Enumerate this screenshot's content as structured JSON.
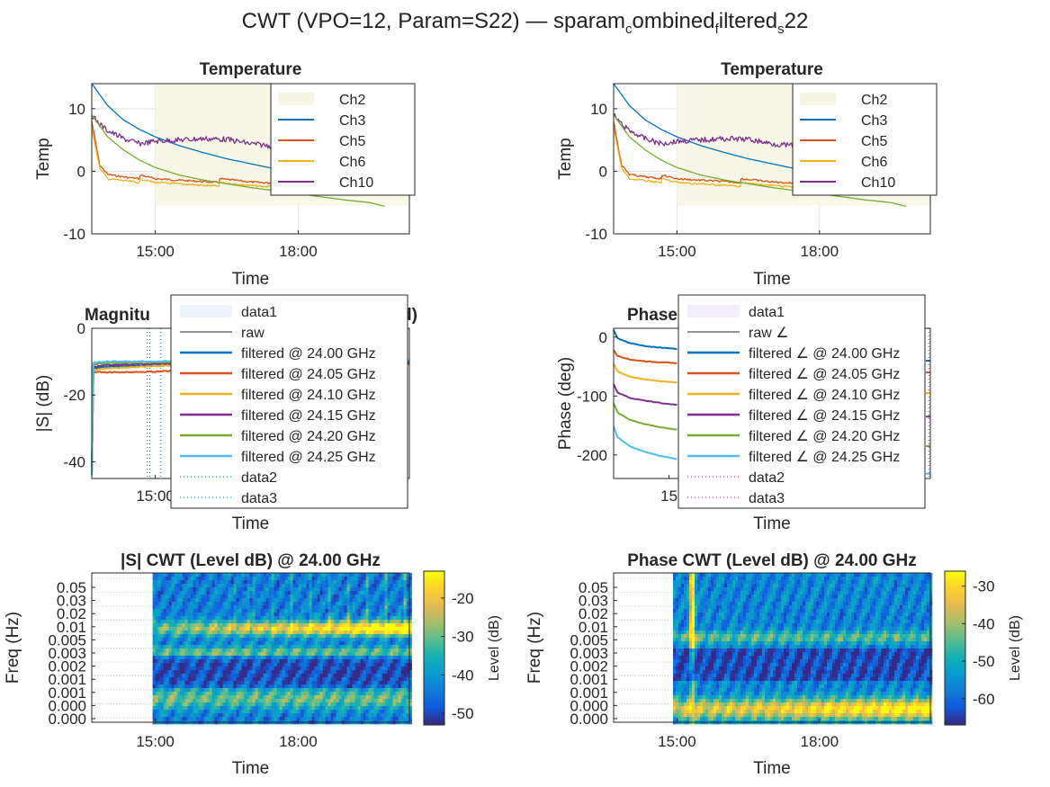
{
  "suptitle": {
    "prefix": "CWT (VPO=12, Param=S22) — sparam",
    "s1": "c",
    "mid1": "ombined",
    "s2": "f",
    "mid2": "iltered",
    "s3": "s",
    "suffix": "22"
  },
  "colors": {
    "ch2": "#f7f6e4",
    "ch3": "#0072bd",
    "ch5": "#d95319",
    "ch6": "#edb120",
    "ch10": "#7e2f8e",
    "f2400": "#0072bd",
    "f2405": "#d95319",
    "f2410": "#edb120",
    "f2415": "#7e2f8e",
    "f2420": "#77ac30",
    "f2425": "#4dbeee"
  },
  "chart_data": [
    {
      "id": "temp_left",
      "type": "line",
      "title": "Temperature",
      "xlabel": "Time",
      "ylabel": "Temp",
      "x_ticks": [
        "15:00",
        "18:00"
      ],
      "xlim": [
        "13:40",
        "20:20"
      ],
      "ylim": [
        -10,
        14
      ],
      "y_ticks": [
        10,
        0,
        -10
      ],
      "grid": true,
      "legend": "top-right",
      "legend_entries": [
        "Ch2",
        "Ch3",
        "Ch5",
        "Ch6",
        "Ch10"
      ],
      "series": [
        {
          "name": "Ch2",
          "kind": "band",
          "x": [
            "15:00",
            "20:20"
          ],
          "y": [
            -5.5,
            14
          ]
        },
        {
          "name": "Ch3",
          "x": [
            "13:40",
            "14:00",
            "14:20",
            "14:40",
            "15:00",
            "15:30",
            "16:00",
            "16:30",
            "17:00",
            "17:30",
            "18:00",
            "18:30",
            "19:00",
            "19:30",
            "19:50",
            "19:55",
            "20:20"
          ],
          "y": [
            14,
            10.5,
            8.2,
            6.7,
            5.5,
            4.1,
            3.0,
            2.0,
            1.2,
            0.4,
            -0.3,
            -0.9,
            -1.5,
            -2.0,
            -2.6,
            -0.8,
            -0.8
          ]
        },
        {
          "name": "Ch5",
          "x": [
            "13:40",
            "13:50",
            "14:00",
            "14:20",
            "14:40",
            "14:41",
            "15:00",
            "15:40",
            "16:20",
            "16:21",
            "17:00",
            "17:40",
            "18:20",
            "19:00",
            "19:40",
            "20:20"
          ],
          "y": [
            8,
            1.0,
            -0.5,
            -0.9,
            -1.2,
            -0.6,
            -1.2,
            -1.5,
            -1.8,
            -1.2,
            -1.7,
            -2.0,
            -2.3,
            -2.6,
            -2.8,
            -3.0
          ]
        },
        {
          "name": "Ch6",
          "x": [
            "13:40",
            "13:50",
            "14:00",
            "14:20",
            "14:40",
            "14:41",
            "15:00",
            "15:40",
            "16:20",
            "16:21",
            "17:00",
            "17:40",
            "18:20",
            "19:00",
            "19:40",
            "20:20"
          ],
          "y": [
            7,
            0.5,
            -1.2,
            -1.5,
            -1.8,
            -1.2,
            -1.8,
            -2.1,
            -2.4,
            -1.8,
            -2.3,
            -2.6,
            -2.9,
            -3.2,
            -3.4,
            -3.6
          ]
        },
        {
          "name": "Ch10",
          "x": [
            "13:40",
            "13:50",
            "14:00",
            "14:20",
            "14:40",
            "15:00",
            "15:30",
            "16:00",
            "16:30",
            "17:00",
            "17:30",
            "18:00",
            "18:30",
            "19:00",
            "19:30",
            "20:00",
            "20:20"
          ],
          "y": [
            9,
            7.5,
            6.5,
            5.2,
            4.4,
            4.8,
            5.0,
            5.2,
            5.1,
            4.4,
            4.0,
            3.8,
            3.5,
            3.3,
            3.2,
            3.1,
            3.0
          ]
        },
        {
          "name": "",
          "x": [
            "13:40",
            "14:00",
            "14:20",
            "14:40",
            "15:00",
            "15:30",
            "16:00",
            "16:30",
            "17:00",
            "17:30",
            "18:00",
            "18:30",
            "19:00",
            "19:30",
            "19:49"
          ],
          "y": [
            9,
            5.5,
            3.4,
            1.8,
            0.6,
            -0.6,
            -1.4,
            -2.0,
            -2.6,
            -3.1,
            -3.6,
            -4.1,
            -4.6,
            -5.0,
            -5.6
          ]
        }
      ]
    },
    {
      "id": "temp_right",
      "type": "line",
      "title": "Temperature",
      "xlabel": "Time",
      "ylabel": "Temp",
      "x_ticks": [
        "15:00",
        "18:00"
      ],
      "xlim": [
        "13:40",
        "20:20"
      ],
      "ylim": [
        -10,
        14
      ],
      "y_ticks": [
        10,
        0,
        -10
      ],
      "grid": true,
      "legend": "top-right",
      "legend_entries": [
        "Ch2",
        "Ch3",
        "Ch5",
        "Ch6",
        "Ch10"
      ]
    },
    {
      "id": "mag",
      "type": "line",
      "title_visible": "Magnitu",
      "title_visible_tail": "d)",
      "xlabel": "Time",
      "ylabel": "|S| (dB)",
      "x_ticks": [
        "15:00"
      ],
      "xlim": [
        "13:40",
        "20:20"
      ],
      "ylim": [
        -45,
        0
      ],
      "y_ticks": [
        0,
        -20,
        -40
      ],
      "legend": "top-right",
      "legend_entries": [
        "data1",
        "raw",
        "filtered @ 24.00 GHz",
        "filtered @ 24.05 GHz",
        "filtered @ 24.10 GHz",
        "filtered @ 24.15 GHz",
        "filtered @ 24.20 GHz",
        "filtered @ 24.25 GHz",
        "data2",
        "data3"
      ],
      "series": [
        {
          "name": "filtered @ 24.00 GHz",
          "x": [
            "13:40",
            "13:42",
            "14:00",
            "15:00",
            "16:00",
            "17:00",
            "18:00",
            "19:00",
            "20:20"
          ],
          "y": [
            -44,
            -12,
            -11.5,
            -11.2,
            -11.0,
            -10.8,
            -10.6,
            -10.5,
            -10.4
          ]
        },
        {
          "name": "filtered @ 24.05 GHz",
          "x": [
            "13:40",
            "13:42",
            "14:00",
            "15:00",
            "16:00",
            "17:00",
            "18:00",
            "19:00",
            "20:20"
          ],
          "y": [
            -44,
            -13,
            -13.2,
            -13.0,
            -12.2,
            -11.6,
            -11.0,
            -10.8,
            -10.6
          ]
        },
        {
          "name": "filtered @ 24.10 GHz",
          "x": [
            "13:40",
            "13:42",
            "14:00",
            "15:00",
            "16:00",
            "17:00",
            "18:00",
            "19:00",
            "20:20"
          ],
          "y": [
            -44,
            -12.5,
            -12.0,
            -11.3,
            -10.8,
            -10.4,
            -10.1,
            -10.0,
            -9.8
          ]
        },
        {
          "name": "filtered @ 24.15 GHz",
          "x": [
            "13:40",
            "13:42",
            "14:00",
            "15:00",
            "16:00",
            "17:00",
            "18:00",
            "19:00",
            "20:20"
          ],
          "y": [
            -44,
            -11.5,
            -11.0,
            -10.7,
            -10.3,
            -10.1,
            -10.0,
            -9.9,
            -9.8
          ]
        },
        {
          "name": "filtered @ 24.20 GHz",
          "x": [
            "13:40",
            "13:42",
            "14:00",
            "15:00",
            "16:00",
            "17:00",
            "18:00",
            "19:00",
            "20:20"
          ],
          "y": [
            -44,
            -10.8,
            -10.4,
            -10.2,
            -10.0,
            -9.9,
            -9.8,
            -9.7,
            -9.6
          ]
        },
        {
          "name": "filtered @ 24.25 GHz",
          "x": [
            "13:40",
            "13:42",
            "14:00",
            "15:00",
            "16:00",
            "17:00",
            "18:00",
            "19:00",
            "20:20"
          ],
          "y": [
            -44,
            -10.3,
            -10.0,
            -9.9,
            -9.8,
            -9.7,
            -9.6,
            -9.6,
            -9.5
          ]
        }
      ]
    },
    {
      "id": "phase",
      "type": "line",
      "title_visible": "Phase",
      "xlabel": "Time",
      "ylabel": "Phase (deg)",
      "x_ticks": [
        "15"
      ],
      "xlim": [
        "13:40",
        "20:20"
      ],
      "ylim": [
        -240,
        15
      ],
      "y_ticks": [
        0,
        -100,
        -200
      ],
      "legend": "top-right",
      "legend_entries": [
        "data1",
        "raw ∠",
        "filtered ∠ @ 24.00 GHz",
        "filtered ∠ @ 24.05 GHz",
        "filtered ∠ @ 24.10 GHz",
        "filtered ∠ @ 24.15 GHz",
        "filtered ∠ @ 24.20 GHz",
        "filtered ∠ @ 24.25 GHz",
        "data2",
        "data3"
      ],
      "series": [
        {
          "name": "filtered ∠ @ 24.00 GHz",
          "x": [
            "13:40",
            "13:45",
            "14:00",
            "14:20",
            "14:40",
            "15:00"
          ],
          "y": [
            12,
            -2,
            -10,
            -15,
            -18,
            -20
          ]
        },
        {
          "name": "filtered ∠ @ 24.05 GHz",
          "x": [
            "13:40",
            "13:45",
            "14:00",
            "14:20",
            "14:40",
            "15:00"
          ],
          "y": [
            -22,
            -32,
            -38,
            -41,
            -43,
            -44
          ]
        },
        {
          "name": "filtered ∠ @ 24.10 GHz",
          "x": [
            "13:40",
            "13:45",
            "14:00",
            "14:20",
            "14:40",
            "15:00"
          ],
          "y": [
            -45,
            -58,
            -67,
            -72,
            -75,
            -77
          ]
        },
        {
          "name": "filtered ∠ @ 24.15 GHz",
          "x": [
            "13:40",
            "13:45",
            "14:00",
            "14:20",
            "14:40",
            "15:00"
          ],
          "y": [
            -80,
            -94,
            -103,
            -108,
            -112,
            -115
          ]
        },
        {
          "name": "filtered ∠ @ 24.20 GHz",
          "x": [
            "13:40",
            "13:45",
            "14:00",
            "14:20",
            "14:40",
            "15:00"
          ],
          "y": [
            -112,
            -128,
            -140,
            -148,
            -153,
            -157
          ]
        },
        {
          "name": "filtered ∠ @ 24.25 GHz",
          "x": [
            "13:40",
            "13:45",
            "14:00",
            "14:20",
            "14:40",
            "15:00"
          ],
          "y": [
            -152,
            -170,
            -185,
            -195,
            -202,
            -207
          ]
        }
      ]
    },
    {
      "id": "cwt_mag",
      "type": "heatmap",
      "title": "|S| CWT (Level dB) @ 24.00 GHz",
      "xlabel": "Time",
      "ylabel": "Freq (Hz)",
      "x_ticks": [
        "15:00",
        "18:00"
      ],
      "y_ticks": [
        "0.05",
        "0.03",
        "0.02",
        "0.01",
        "0.005",
        "0.003",
        "0.002",
        "0.001",
        "0.001",
        "0.000",
        "0.000"
      ],
      "colorbar_label": "Level (dB)",
      "colorbar_ticks": [
        -20,
        -30,
        -40,
        -50
      ],
      "clim": [
        -53,
        -13
      ]
    },
    {
      "id": "cwt_phase",
      "type": "heatmap",
      "title": "Phase CWT (Level dB) @ 24.00 GHz",
      "xlabel": "Time",
      "ylabel": "Freq (Hz)",
      "x_ticks": [
        "15:00",
        "18:00"
      ],
      "y_ticks": [
        "0.05",
        "0.03",
        "0.02",
        "0.01",
        "0.005",
        "0.003",
        "0.002",
        "0.001",
        "0.001",
        "0.000",
        "0.000"
      ],
      "colorbar_label": "Level (dB)",
      "colorbar_ticks": [
        -30,
        -40,
        -50,
        -60
      ],
      "clim": [
        -67,
        -26
      ]
    }
  ]
}
